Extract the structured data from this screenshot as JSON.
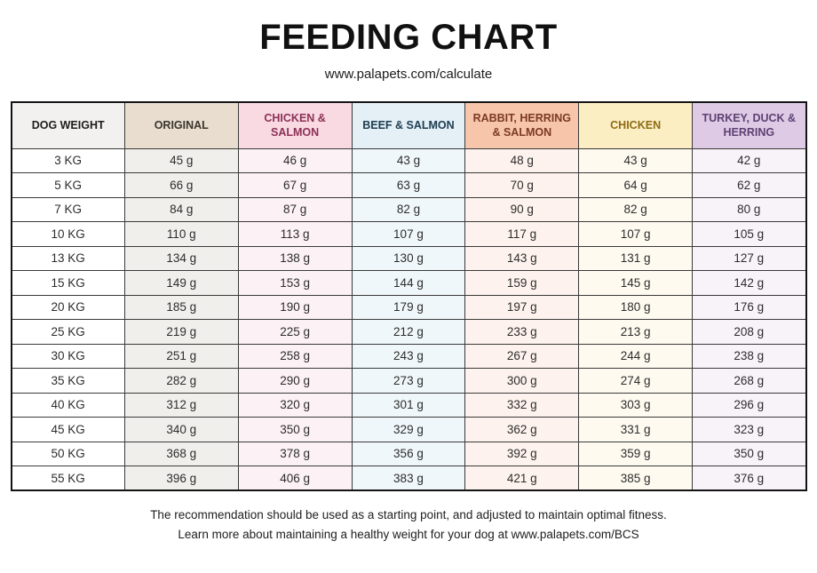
{
  "page": {
    "title": "FEEDING CHART",
    "subtitle": "www.palapets.com/calculate",
    "footer_line1": "The recommendation should be used as a starting point, and adjusted to maintain optimal fitness.",
    "footer_line2": "Learn more about maintaining a healthy weight for your dog at www.palapets.com/BCS"
  },
  "chart_data": {
    "type": "table",
    "columns": [
      {
        "label": "DOG WEIGHT",
        "header_bg": "#f2f1ef",
        "header_color": "#1d1d1d",
        "cell_bg": "#ffffff"
      },
      {
        "label": "ORIGINAL",
        "header_bg": "#e9ddd0",
        "header_color": "#3b352c",
        "cell_bg": "#f1efeb"
      },
      {
        "label": "CHICKEN & SALMON",
        "header_bg": "#f9d9e2",
        "header_color": "#8c3156",
        "cell_bg": "#fcf1f4"
      },
      {
        "label": "BEEF & SALMON",
        "header_bg": "#e4eff6",
        "header_color": "#1d3d50",
        "cell_bg": "#f0f7fa"
      },
      {
        "label": "RABBIT, HERRING & SALMON",
        "header_bg": "#f6c5aa",
        "header_color": "#7c3a25",
        "cell_bg": "#fdf2ed"
      },
      {
        "label": "CHICKEN",
        "header_bg": "#faeec2",
        "header_color": "#8f6b16",
        "cell_bg": "#fefaf0"
      },
      {
        "label": "TURKEY, DUCK & HERRING",
        "header_bg": "#decae5",
        "header_color": "#5e4173",
        "cell_bg": "#f8f3f9"
      }
    ],
    "unit": "g",
    "rows": [
      {
        "weight": "3 KG",
        "values": [
          "45 g",
          "46 g",
          "43 g",
          "48 g",
          "43 g",
          "42 g"
        ]
      },
      {
        "weight": "5 KG",
        "values": [
          "66 g",
          "67 g",
          "63 g",
          "70 g",
          "64 g",
          "62 g"
        ]
      },
      {
        "weight": "7 KG",
        "values": [
          "84 g",
          "87 g",
          "82 g",
          "90 g",
          "82 g",
          "80 g"
        ]
      },
      {
        "weight": "10 KG",
        "values": [
          "110 g",
          "113 g",
          "107 g",
          "117 g",
          "107 g",
          "105 g"
        ]
      },
      {
        "weight": "13 KG",
        "values": [
          "134 g",
          "138 g",
          "130 g",
          "143 g",
          "131 g",
          "127 g"
        ]
      },
      {
        "weight": "15 KG",
        "values": [
          "149 g",
          "153 g",
          "144 g",
          "159 g",
          "145 g",
          "142 g"
        ]
      },
      {
        "weight": "20 KG",
        "values": [
          "185 g",
          "190 g",
          "179 g",
          "197 g",
          "180 g",
          "176 g"
        ]
      },
      {
        "weight": "25 KG",
        "values": [
          "219 g",
          "225 g",
          "212 g",
          "233 g",
          "213 g",
          "208 g"
        ]
      },
      {
        "weight": "30 KG",
        "values": [
          "251 g",
          "258 g",
          "243 g",
          "267 g",
          "244 g",
          "238 g"
        ]
      },
      {
        "weight": "35 KG",
        "values": [
          "282 g",
          "290 g",
          "273 g",
          "300 g",
          "274 g",
          "268 g"
        ]
      },
      {
        "weight": "40 KG",
        "values": [
          "312 g",
          "320 g",
          "301 g",
          "332 g",
          "303 g",
          "296 g"
        ]
      },
      {
        "weight": "45 KG",
        "values": [
          "340 g",
          "350 g",
          "329 g",
          "362 g",
          "331 g",
          "323 g"
        ]
      },
      {
        "weight": "50 KG",
        "values": [
          "368 g",
          "378 g",
          "356 g",
          "392 g",
          "359 g",
          "350 g"
        ]
      },
      {
        "weight": "55 KG",
        "values": [
          "396 g",
          "406 g",
          "383 g",
          "421 g",
          "385 g",
          "376 g"
        ]
      }
    ]
  }
}
